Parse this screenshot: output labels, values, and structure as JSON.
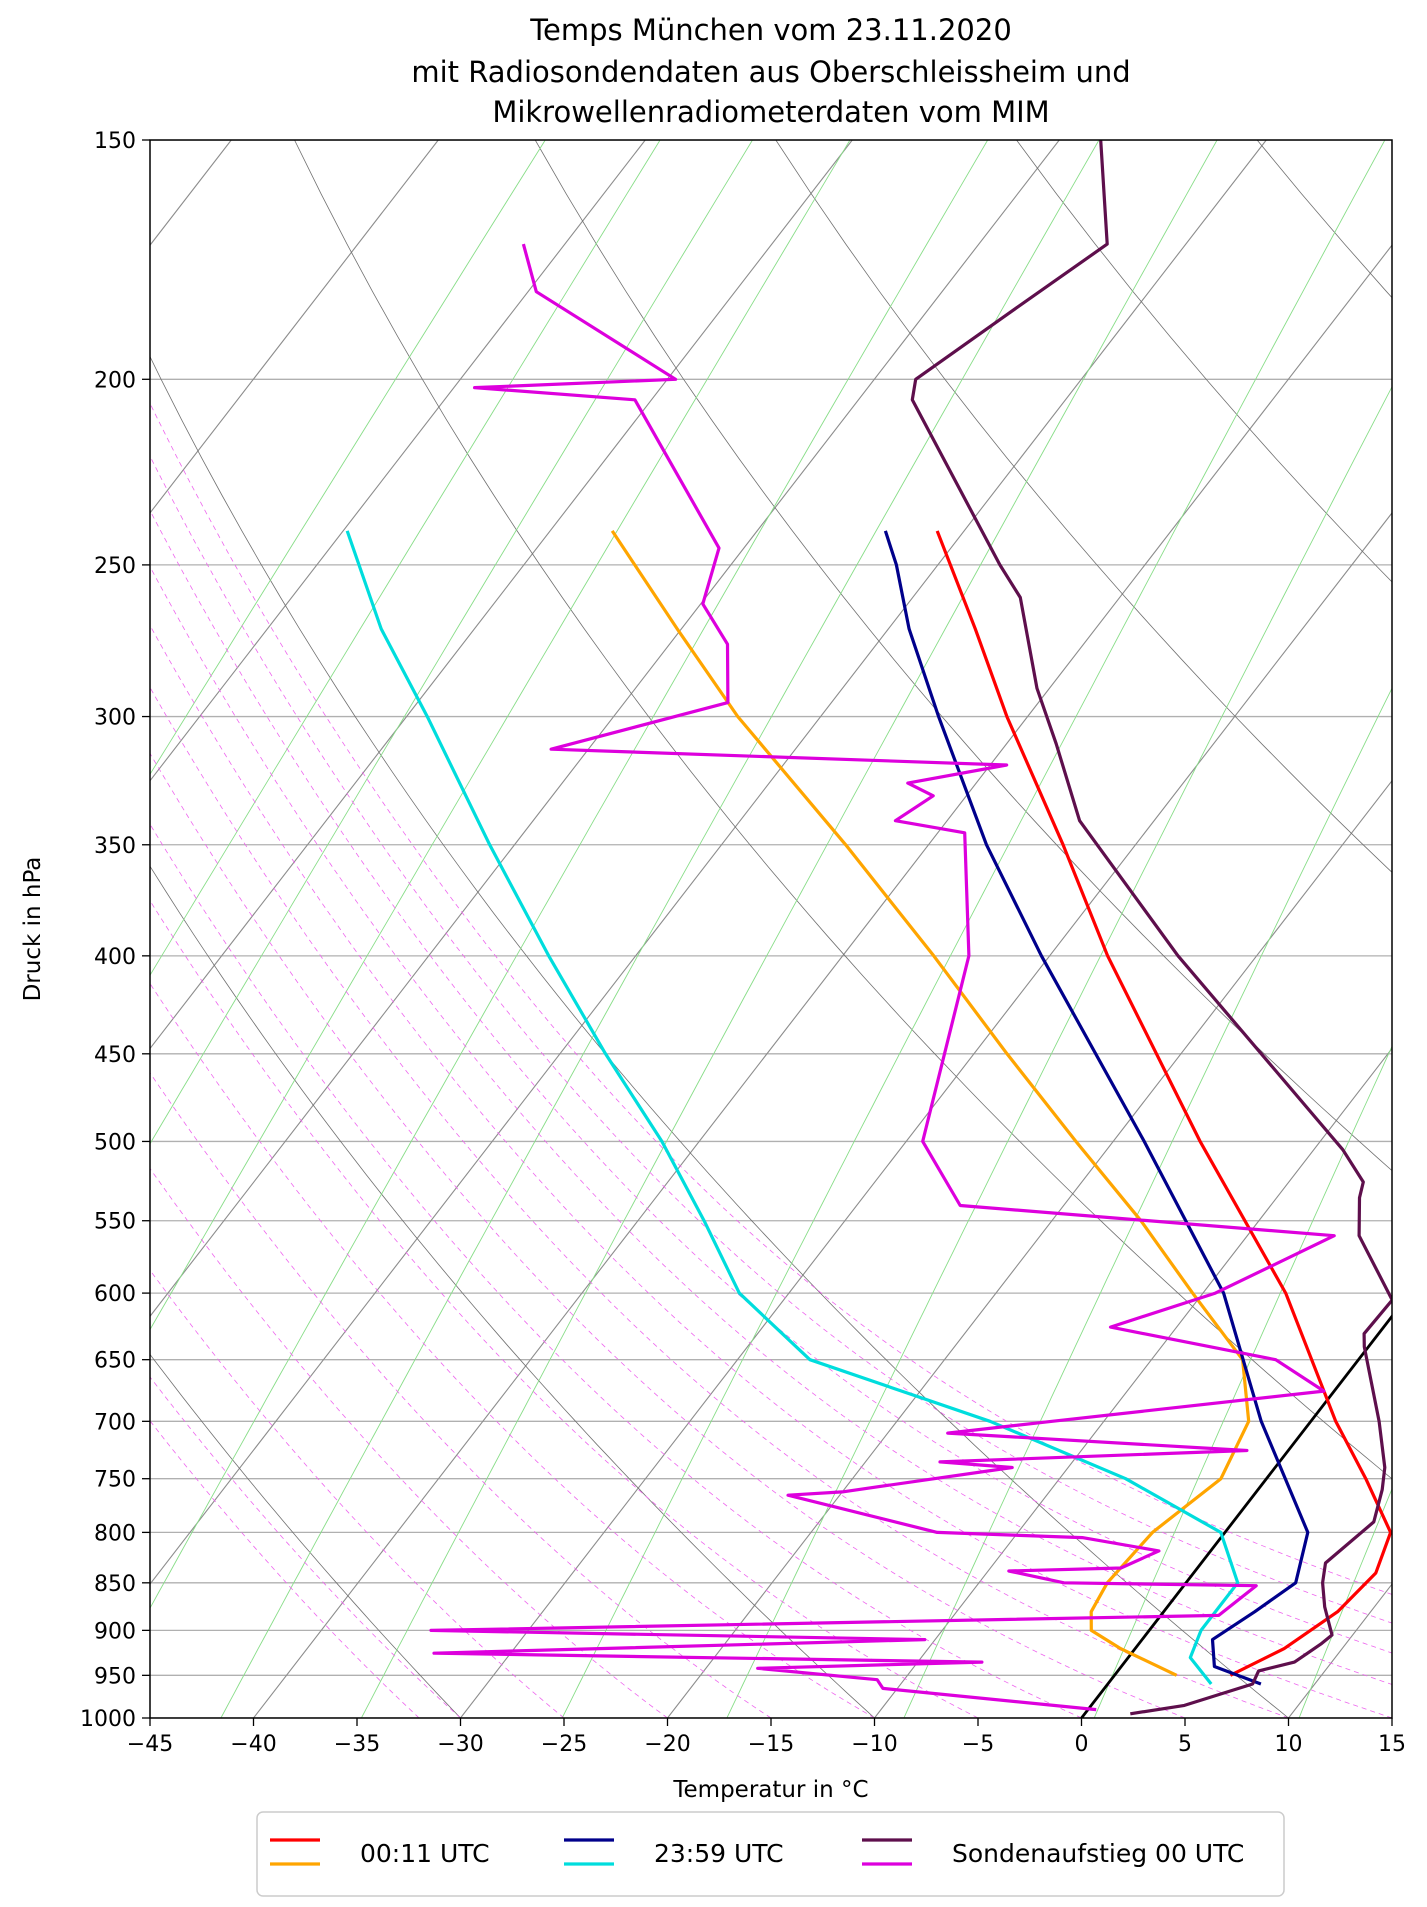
{
  "chart_data": {
    "type": "line",
    "title": [
      "Temps München vom 23.11.2020",
      "mit Radiosondendaten aus Oberschleissheim und",
      "Mikrowellenradiometerdaten vom MIM"
    ],
    "xlabel": "Temperatur in °C",
    "ylabel": "Druck in hPa",
    "xlim": [
      -45,
      15
    ],
    "ylim": [
      1000,
      150
    ],
    "x_scale": "skewed",
    "y_scale": "log",
    "xticks": [
      -45,
      -40,
      -35,
      -30,
      -25,
      -20,
      -15,
      -10,
      -5,
      0,
      5,
      10,
      15
    ],
    "xtick_labels": [
      "−45",
      "−40",
      "−35",
      "−30",
      "−25",
      "−20",
      "−15",
      "−10",
      "−5",
      "0",
      "5",
      "10",
      "15"
    ],
    "yticks": [
      1000,
      950,
      900,
      850,
      800,
      750,
      700,
      650,
      600,
      550,
      500,
      450,
      400,
      350,
      300,
      250,
      200,
      150
    ],
    "ytick_labels": [
      "1000",
      "950",
      "900",
      "850",
      "800",
      "750",
      "700",
      "650",
      "600",
      "550",
      "500",
      "450",
      "400",
      "350",
      "300",
      "250",
      "200",
      "150"
    ],
    "grid": true,
    "background_lines": {
      "isotherms": "grey",
      "dry_adiabats": "dimgrey",
      "mixing_ratio": "green",
      "moist_adiabats": "magenta-dashed",
      "highlighted": "0 °C isotherm (black)"
    },
    "legend": {
      "placement": "bottom-center",
      "entries": [
        {
          "label": "00:11 UTC",
          "colors": [
            "#ff0000",
            "#ffa500"
          ]
        },
        {
          "label": "23:59 UTC",
          "colors": [
            "#00008b",
            "#00dddd"
          ]
        },
        {
          "label": "Sondenaufstieg 00 UTC",
          "colors": [
            "#5e0f4c",
            "#dd00dd"
          ]
        }
      ]
    },
    "series": [
      {
        "name": "00:11 UTC",
        "kind": "temperature",
        "color": "#ff0000",
        "points": [
          [
            950,
            5.6
          ],
          [
            920,
            7.2
          ],
          [
            880,
            8.4
          ],
          [
            840,
            8.8
          ],
          [
            800,
            8.0
          ],
          [
            750,
            4.8
          ],
          [
            700,
            1.2
          ],
          [
            600,
            -6.0
          ],
          [
            500,
            -15.8
          ],
          [
            400,
            -27.2
          ],
          [
            350,
            -33.5
          ],
          [
            300,
            -41.0
          ],
          [
            270,
            -45.8
          ],
          [
            240,
            -51.3
          ]
        ]
      },
      {
        "name": "00:11 UTC",
        "kind": "dewpoint",
        "color": "#ffa500",
        "points": [
          [
            950,
            3.0
          ],
          [
            920,
            -0.7
          ],
          [
            900,
            -2.8
          ],
          [
            880,
            -3.5
          ],
          [
            850,
            -3.8
          ],
          [
            800,
            -3.5
          ],
          [
            750,
            -2.2
          ],
          [
            700,
            -3.0
          ],
          [
            650,
            -5.6
          ],
          [
            600,
            -10.5
          ],
          [
            550,
            -15.7
          ],
          [
            500,
            -21.8
          ],
          [
            450,
            -28.4
          ],
          [
            400,
            -35.6
          ],
          [
            350,
            -44.0
          ],
          [
            300,
            -54.0
          ],
          [
            270,
            -60.2
          ],
          [
            240,
            -67.0
          ]
        ]
      },
      {
        "name": "23:59 UTC",
        "kind": "temperature",
        "color": "#00008b",
        "points": [
          [
            960,
            7.4
          ],
          [
            940,
            4.5
          ],
          [
            910,
            3.4
          ],
          [
            880,
            4.4
          ],
          [
            850,
            5.3
          ],
          [
            800,
            4.0
          ],
          [
            700,
            -2.4
          ],
          [
            600,
            -9.0
          ],
          [
            500,
            -18.5
          ],
          [
            400,
            -30.4
          ],
          [
            350,
            -37.2
          ],
          [
            300,
            -44.3
          ],
          [
            270,
            -49.0
          ],
          [
            250,
            -52.0
          ],
          [
            240,
            -53.8
          ]
        ]
      },
      {
        "name": "23:59 UTC",
        "kind": "dewpoint",
        "color": "#00dddd",
        "points": [
          [
            960,
            5.0
          ],
          [
            930,
            3.0
          ],
          [
            900,
            2.5
          ],
          [
            850,
            2.5
          ],
          [
            800,
            -0.2
          ],
          [
            750,
            -6.8
          ],
          [
            700,
            -15.5
          ],
          [
            650,
            -26.5
          ],
          [
            600,
            -32.4
          ],
          [
            550,
            -36.8
          ],
          [
            500,
            -41.8
          ],
          [
            450,
            -47.8
          ],
          [
            400,
            -54.2
          ],
          [
            350,
            -61.2
          ],
          [
            300,
            -69.0
          ],
          [
            270,
            -74.5
          ],
          [
            240,
            -79.8
          ]
        ]
      },
      {
        "name": "Sondenaufstieg 00 UTC",
        "kind": "temperature",
        "color": "#5e0f4c",
        "points": [
          [
            995,
            2.2
          ],
          [
            985,
            4.5
          ],
          [
            960,
            7.0
          ],
          [
            945,
            6.8
          ],
          [
            935,
            8.2
          ],
          [
            915,
            8.8
          ],
          [
            905,
            9.0
          ],
          [
            875,
            7.6
          ],
          [
            850,
            6.6
          ],
          [
            830,
            6.0
          ],
          [
            790,
            6.8
          ],
          [
            760,
            6.0
          ],
          [
            740,
            5.3
          ],
          [
            700,
            3.3
          ],
          [
            640,
            -0.2
          ],
          [
            630,
            -0.7
          ],
          [
            605,
            -0.6
          ],
          [
            560,
            -4.6
          ],
          [
            535,
            -6.0
          ],
          [
            525,
            -6.4
          ],
          [
            505,
            -8.6
          ],
          [
            400,
            -23.8
          ],
          [
            340,
            -33.6
          ],
          [
            310,
            -37.6
          ],
          [
            290,
            -40.6
          ],
          [
            260,
            -44.8
          ],
          [
            250,
            -47.0
          ],
          [
            205,
            -57.4
          ],
          [
            200,
            -58.0
          ],
          [
            185,
            -56.0
          ],
          [
            170,
            -53.8
          ],
          [
            150,
            -58.0
          ]
        ]
      },
      {
        "name": "Sondenaufstieg 00 UTC",
        "kind": "dewpoint",
        "color": "#dd00dd",
        "points": [
          [
            990,
            0.4
          ],
          [
            965,
            -10.7
          ],
          [
            955,
            -11.3
          ],
          [
            942,
            -17.5
          ],
          [
            935,
            -6.9
          ],
          [
            925,
            -33.7
          ],
          [
            910,
            -10.5
          ],
          [
            900,
            -34.7
          ],
          [
            884,
            2.8
          ],
          [
            853,
            3.5
          ],
          [
            850,
            -5.9
          ],
          [
            838,
            -9.0
          ],
          [
            835,
            -3.7
          ],
          [
            818,
            -2.5
          ],
          [
            805,
            -6.7
          ],
          [
            800,
            -13.9
          ],
          [
            765,
            -22.5
          ],
          [
            762,
            -20.0
          ],
          [
            740,
            -12.7
          ],
          [
            735,
            -16.4
          ],
          [
            725,
            -2.0
          ],
          [
            710,
            -17.1
          ],
          [
            700,
            -12.5
          ],
          [
            675,
            -0.5
          ],
          [
            650,
            -4.0
          ],
          [
            625,
            -13.2
          ],
          [
            600,
            -9.4
          ],
          [
            560,
            -5.8
          ],
          [
            540,
            -25.0
          ],
          [
            500,
            -29.2
          ],
          [
            400,
            -33.9
          ],
          [
            345,
            -38.7
          ],
          [
            340,
            -42.5
          ],
          [
            330,
            -41.6
          ],
          [
            325,
            -43.3
          ],
          [
            318,
            -39.2
          ],
          [
            312,
            -61.8
          ],
          [
            295,
            -55.0
          ],
          [
            275,
            -57.2
          ],
          [
            262,
            -59.9
          ],
          [
            245,
            -61.2
          ],
          [
            205,
            -70.8
          ],
          [
            202,
            -79.0
          ],
          [
            200,
            -69.6
          ],
          [
            180,
            -79.6
          ],
          [
            170,
            -82.0
          ]
        ]
      }
    ]
  }
}
